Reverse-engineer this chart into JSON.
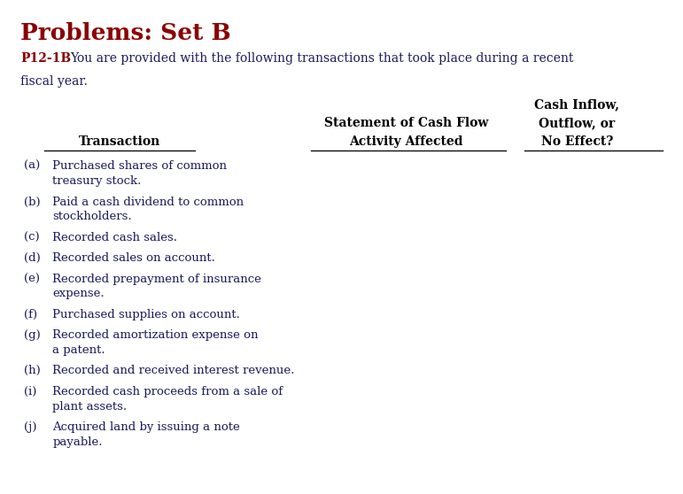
{
  "title": "Problems: Set B",
  "problem_id": "P12-1B",
  "intro_line1": "You are provided with the following transactions that took place during a recent",
  "intro_line2": "fiscal year.",
  "col1_header": "Transaction",
  "col2_header_line1": "Statement of Cash Flow",
  "col2_header_line2": "Activity Affected",
  "col3_header_line1": "Cash Inflow,",
  "col3_header_line2": "Outflow, or",
  "col3_header_line3": "No Effect?",
  "transactions": [
    {
      "label": "(a)",
      "line1": "Purchased shares of common",
      "line2": "treasury stock."
    },
    {
      "label": "(b)",
      "line1": "Paid a cash dividend to common",
      "line2": "stockholders."
    },
    {
      "label": "(c)",
      "line1": "Recorded cash sales.",
      "line2": ""
    },
    {
      "label": "(d)",
      "line1": "Recorded sales on account.",
      "line2": ""
    },
    {
      "label": "(e)",
      "line1": "Recorded prepayment of insurance",
      "line2": "expense."
    },
    {
      "label": "(f)",
      "line1": "Purchased supplies on account.",
      "line2": ""
    },
    {
      "label": "(g)",
      "line1": "Recorded amortization expense on",
      "line2": "a patent."
    },
    {
      "label": "(h)",
      "line1": "Recorded and received interest revenue.",
      "line2": ""
    },
    {
      "label": "(i)",
      "line1": "Recorded cash proceeds from a sale of",
      "line2": "plant assets."
    },
    {
      "label": "(j)",
      "line1": "Acquired land by issuing a note",
      "line2": "payable."
    }
  ],
  "bg_color": "#ffffff",
  "title_color": "#8B0000",
  "problem_id_color": "#8B0000",
  "text_color": "#1a1a5e",
  "header_color": "#000000",
  "title_fontsize": 19,
  "intro_fontsize": 10,
  "header_fontsize": 10,
  "body_fontsize": 9.5,
  "figwidth": 7.71,
  "figheight": 5.58,
  "dpi": 100
}
